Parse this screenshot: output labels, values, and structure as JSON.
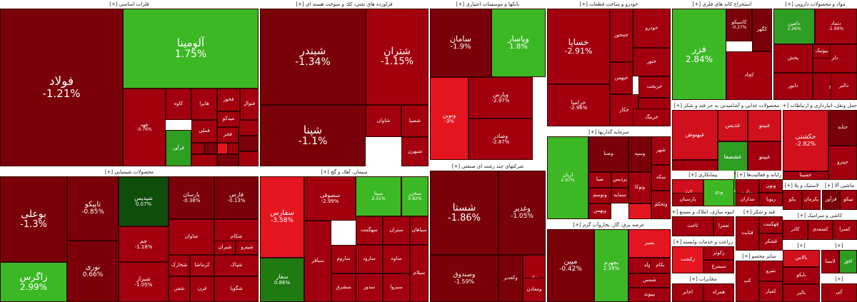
{
  "colors": {
    "deep_red": "#7a0009",
    "red": "#a3000f",
    "bright_red": "#d0101c",
    "vivid_red": "#e5151f",
    "pale_red": "#b31a1a",
    "green": "#2e9e22",
    "bright_green": "#3cb825",
    "dark_green": "#0f4d0a",
    "mid_green": "#1f7a12",
    "gray_red": "#8c1a1a"
  },
  "sectors": [
    {
      "key": "metals",
      "title": "فلزات اساسی [+]",
      "tiles": [
        {
          "sym": "فولاد",
          "chg": "-1.21%"
        },
        {
          "sym": "آلومینا",
          "chg": "1.75%"
        },
        {
          "sym": "کاوه",
          "chg": ""
        },
        {
          "sym": "فخوز",
          "chg": ""
        },
        {
          "sym": "فرآور",
          "chg": ""
        },
        {
          "sym": "فملی",
          "chg": ""
        },
        {
          "sym": "فنوال",
          "chg": ""
        },
        {
          "sym": "میدکو",
          "chg": ""
        },
        {
          "sym": "فجر",
          "chg": ""
        },
        {
          "sym": "هایرا",
          "chg": ""
        },
        {
          "sym": "فهه",
          "chg": "-0.76%"
        }
      ]
    },
    {
      "key": "refinery",
      "title": "فراورده هاي نفتي، كك و سوخت هسته اي [+]",
      "tiles": [
        {
          "sym": "شبندر",
          "chg": "-1.34%"
        },
        {
          "sym": "شتران",
          "chg": "-1.15%"
        },
        {
          "sym": "شپنا",
          "chg": "-1.1%"
        },
        {
          "sym": "شبهرن",
          "chg": ""
        },
        {
          "sym": "شاوان",
          "chg": ""
        },
        {
          "sym": "شسپا",
          "chg": ""
        }
      ]
    },
    {
      "key": "banks",
      "title": "بانکها و موسسات اعتباری [+]",
      "tiles": [
        {
          "sym": "سامان",
          "chg": "-1.9%"
        },
        {
          "sym": "وپاسار",
          "chg": "1.8%"
        },
        {
          "sym": "وپارس",
          "chg": "-2.97%"
        },
        {
          "sym": "ونوین",
          "chg": "-3%"
        },
        {
          "sym": "وصادر",
          "chg": "-2.87%"
        }
      ]
    },
    {
      "key": "auto",
      "title": "خودرو و ساخت قطعات [+]",
      "tiles": [
        {
          "sym": "خساپا",
          "chg": "-2.91%"
        },
        {
          "sym": "خزامیا",
          "chg": "-2.96%"
        },
        {
          "sym": "خودرو",
          "chg": ""
        },
        {
          "sym": "خمحور",
          "chg": ""
        },
        {
          "sym": "خبهمن",
          "chg": ""
        },
        {
          "sym": "ختور",
          "chg": ""
        },
        {
          "sym": "خکار",
          "chg": ""
        },
        {
          "sym": "خریخت",
          "chg": ""
        },
        {
          "sym": "خچرخش",
          "chg": ""
        },
        {
          "sym": "خرینگ",
          "chg": ""
        }
      ]
    },
    {
      "key": "mining",
      "title": "استخراج کانه های فلزی [+]",
      "tiles": [
        {
          "sym": "فزر",
          "chg": "2.84%"
        },
        {
          "sym": "کگهر",
          "chg": ""
        },
        {
          "sym": "کاسپکو",
          "chg": "-0.27%"
        },
        {
          "sym": "کچاد",
          "chg": ""
        }
      ]
    },
    {
      "key": "pharma",
      "title": "مواد و محصولات دارویی [+]",
      "tiles": [
        {
          "sym": "دامین",
          "chg": "1.26%"
        },
        {
          "sym": "دتماد",
          "chg": "-1.99%"
        },
        {
          "sym": "پخش",
          "chg": ""
        },
        {
          "sym": "دلر",
          "chg": ""
        },
        {
          "sym": "دابور",
          "chg": ""
        },
        {
          "sym": "تیپیکو",
          "chg": ""
        },
        {
          "sym": "دالبر",
          "chg": ""
        },
        {
          "sym": "بیوتیک",
          "chg": ""
        }
      ]
    },
    {
      "key": "food",
      "title": "محصولات غذايي و آشاميدني به جز قند و شكر [+]",
      "tiles": [
        {
          "sym": "غبهنوش",
          "chg": ""
        },
        {
          "sym": "غدیس",
          "chg": ""
        },
        {
          "sym": "غبینو",
          "chg": ""
        },
        {
          "sym": "غشصفا",
          "chg": ""
        },
        {
          "sym": "غپینو",
          "chg": ""
        },
        {
          "sym": "غگل",
          "chg": ""
        },
        {
          "sym": "غویتا",
          "chg": ""
        },
        {
          "sym": "وبشهر",
          "chg": ""
        }
      ]
    },
    {
      "key": "transport",
      "title": "حمل ونقل، انبارداري و ارتباطات [+]",
      "tiles": [
        {
          "sym": "حکشتی",
          "chg": "-2.82%"
        },
        {
          "sym": "حتاید",
          "chg": ""
        },
        {
          "sym": "حپترو",
          "chg": ""
        },
        {
          "sym": "حسینا",
          "chg": ""
        }
      ]
    },
    {
      "key": "chemicals",
      "title": "محصولات شیمیایی [+]",
      "tiles": [
        {
          "sym": "بوعلی",
          "chg": "-1.3%"
        },
        {
          "sym": "زاگرس",
          "chg": "2.99%"
        },
        {
          "sym": "تاپیکو",
          "chg": "-0.85%"
        },
        {
          "sym": "نوری",
          "chg": "0.66%"
        },
        {
          "sym": "شپدیس",
          "chg": "0.07%"
        },
        {
          "sym": "پارسان",
          "chg": "-0.38%"
        },
        {
          "sym": "فارس",
          "chg": "-0.13%"
        },
        {
          "sym": "جم",
          "chg": "-1.18%"
        },
        {
          "sym": "شیراز",
          "chg": "-1.05%"
        },
        {
          "sym": "شکام",
          "chg": ""
        },
        {
          "sym": "شفن",
          "chg": ""
        },
        {
          "sym": "کرماشا",
          "chg": ""
        },
        {
          "sym": "قرن",
          "chg": ""
        },
        {
          "sym": "شگویا",
          "chg": ""
        },
        {
          "sym": "شپاک",
          "chg": ""
        },
        {
          "sym": "شاوان",
          "chg": ""
        },
        {
          "sym": "شخارک",
          "chg": ""
        },
        {
          "sym": "شیران",
          "chg": ""
        },
        {
          "sym": "شپترو",
          "chg": ""
        }
      ]
    },
    {
      "key": "cement",
      "title": "سیمان، آهک و گچ [+]",
      "tiles": [
        {
          "sym": "سفارس",
          "chg": "-3.58%"
        },
        {
          "sym": "سفار",
          "chg": "0.86%"
        },
        {
          "sym": "سصوفی",
          "chg": "-2.99%"
        },
        {
          "sym": "سیتا",
          "chg": "2.51%"
        },
        {
          "sym": "سخزر",
          "chg": "0.82%"
        },
        {
          "sym": "سهگمت",
          "chg": ""
        },
        {
          "sym": "ستران",
          "chg": ""
        },
        {
          "sym": "سارود",
          "chg": ""
        },
        {
          "sym": "ساروم",
          "chg": ""
        },
        {
          "sym": "سشرق",
          "chg": ""
        },
        {
          "sym": "سدور",
          "chg": ""
        },
        {
          "sym": "سپاهان",
          "chg": ""
        },
        {
          "sym": "سباقر",
          "chg": ""
        },
        {
          "sym": "ساوه",
          "chg": ""
        },
        {
          "sym": "سبزوا",
          "chg": ""
        },
        {
          "sym": "سیلام",
          "chg": ""
        }
      ]
    },
    {
      "key": "holdings",
      "title": "شرکتهاي چند رشته اي صنعتي [+]",
      "tiles": [
        {
          "sym": "شستا",
          "chg": "-1.86%"
        },
        {
          "sym": "وغدیر",
          "chg": "-1.05%"
        },
        {
          "sym": "وصندوق",
          "chg": "-1.59%"
        },
        {
          "sym": "وکغدیر",
          "chg": ""
        },
        {
          "sym": "وتیکی",
          "chg": ""
        },
        {
          "sym": "ومعادن",
          "chg": ""
        }
      ]
    },
    {
      "key": "investment",
      "title": "سرمایه گذاریها [+]",
      "tiles": [
        {
          "sym": "اریان",
          "chg": "2.97%"
        },
        {
          "sym": "وصنا",
          "chg": ""
        },
        {
          "sym": "صبا",
          "chg": ""
        },
        {
          "sym": "وتوسم",
          "chg": ""
        },
        {
          "sym": "وبهمن",
          "chg": ""
        },
        {
          "sym": "وسپه",
          "chg": ""
        },
        {
          "sym": "شهر",
          "chg": ""
        },
        {
          "sym": "سکه",
          "chg": ""
        },
        {
          "sym": "پردیس",
          "chg": ""
        },
        {
          "sym": "سمایه",
          "chg": ""
        },
        {
          "sym": "وتوکا",
          "chg": ""
        },
        {
          "sym": "وتحکم",
          "chg": ""
        }
      ]
    },
    {
      "key": "utilities",
      "title": "عرضه برق، گاز، بخاروآب گرم [+]",
      "tiles": [
        {
          "sym": "مپین",
          "chg": "-0.42%"
        },
        {
          "sym": "بجهرم",
          "chg": "2.39%"
        },
        {
          "sym": "بصبر",
          "chg": ""
        },
        {
          "sym": "بمولد",
          "chg": ""
        },
        {
          "sym": "شمس",
          "chg": ""
        },
        {
          "sym": "بپیوند",
          "chg": ""
        },
        {
          "sym": "بکام",
          "chg": ""
        }
      ]
    },
    {
      "key": "tech",
      "title": "رایانه و فعالیت‌ها [+]",
      "tiles": [
        {
          "sym": "رتاپ",
          "chg": ""
        },
        {
          "sym": "ونون",
          "chg": ""
        },
        {
          "sym": "رپویا",
          "chg": ""
        },
        {
          "sym": "مداران",
          "chg": ""
        }
      ]
    },
    {
      "key": "sugar",
      "title": "قند و شکر [+]",
      "tiles": [
        {
          "sym": "قثابت",
          "chg": ""
        },
        {
          "sym": "قهکمت",
          "chg": ""
        },
        {
          "sym": "قشکر",
          "chg": ""
        }
      ]
    },
    {
      "key": "contracting",
      "title": "پیمانکاری [+]",
      "tiles": [
        {
          "sym": "کوثر",
          "chg": ""
        },
        {
          "sym": "پارسیان",
          "chg": ""
        },
        {
          "sym": "ودی",
          "chg": ""
        }
      ]
    },
    {
      "key": "realestate",
      "title": "انبوه سازی، املاک و مستغ [+]",
      "tiles": [
        {
          "sym": "ثاخت",
          "chg": ""
        },
        {
          "sym": "ثعمرا",
          "chg": ""
        }
      ]
    },
    {
      "key": "agri",
      "title": "زراعت و خدمات وابسته [+]",
      "tiles": [
        {
          "sym": "زکشت",
          "chg": ""
        },
        {
          "sym": "زکوثر",
          "chg": ""
        },
        {
          "sym": "سیمرغ",
          "chg": ""
        }
      ]
    },
    {
      "key": "telecom",
      "title": "مخابرات [+]",
      "tiles": [
        {
          "sym": "اخابر",
          "chg": ""
        },
        {
          "sym": "همراه",
          "chg": ""
        }
      ]
    },
    {
      "key": "rubber",
      "title": "لاستیک و پلا [+]",
      "tiles": [
        {
          "sym": "پکو",
          "chg": ""
        },
        {
          "sym": "پکرمان",
          "chg": ""
        }
      ]
    },
    {
      "key": "machinery",
      "title": "ماشین آلا [+]",
      "tiles": [
        {
          "sym": "فرآور",
          "chg": ""
        },
        {
          "sym": "تیپکو",
          "chg": ""
        }
      ]
    },
    {
      "key": "other_a",
      "title": "سایر محصو [+]",
      "tiles": [
        {
          "sym": "کپ",
          "chg": ""
        },
        {
          "sym": "بتیرو",
          "chg": ""
        },
        {
          "sym": "کفپار",
          "chg": ""
        }
      ]
    },
    {
      "key": "ceramics",
      "title": "کاشی و سرامیک [+]",
      "tiles": [
        {
          "sym": "کاذر",
          "chg": ""
        },
        {
          "sym": "کسعدی",
          "chg": ""
        },
        {
          "sym": "کسرا",
          "chg": ""
        }
      ]
    },
    {
      "key": "other_b",
      "title": "[+]",
      "tiles": [
        {
          "sym": "بالاس",
          "chg": ""
        },
        {
          "sym": "بایکو",
          "chg": ""
        },
        {
          "sym": "بالبر",
          "chg": ""
        }
      ]
    },
    {
      "key": "other_c",
      "title": "[+]",
      "tiles": [
        {
          "sym": "لابسا",
          "chg": ""
        },
        {
          "sym": "افق",
          "chg": ""
        }
      ]
    },
    {
      "key": "other_d",
      "title": "[+]",
      "tiles": [
        {
          "sym": "کی",
          "chg": ""
        }
      ]
    }
  ]
}
